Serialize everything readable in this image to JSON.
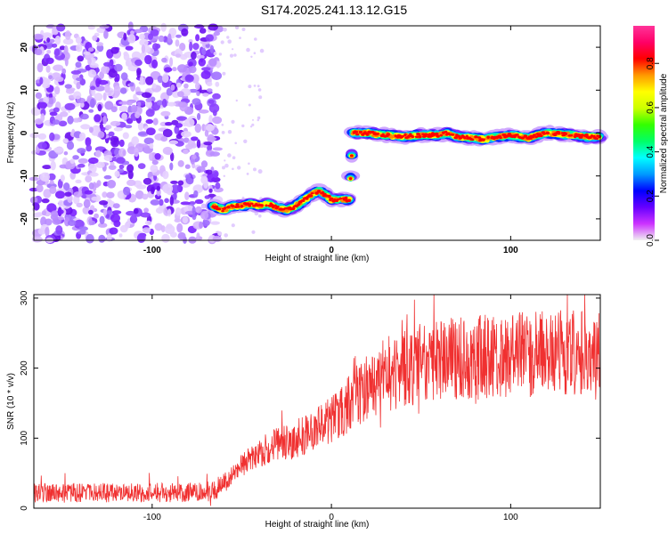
{
  "title": "S174.2025.241.13.12.G15",
  "chart_data": [
    {
      "type": "heatmap",
      "xlabel": "Height of straight line (km)",
      "ylabel": "Frequency (Hz)",
      "xlim": [
        -166,
        150
      ],
      "ylim": [
        -25,
        25
      ],
      "x_ticks": [
        -100,
        0,
        100
      ],
      "y_ticks": [
        -20,
        -10,
        0,
        10,
        20
      ],
      "colorbar": {
        "label": "Normalized spectral amplitude",
        "range": [
          0,
          0.97
        ],
        "ticks": [
          0.0,
          0.2,
          0.4,
          0.6,
          0.8
        ],
        "colors": [
          "#f0f0f0",
          "#cc33ff",
          "#6600ff",
          "#0000ff",
          "#0099ff",
          "#00ffff",
          "#00ff66",
          "#33ff00",
          "#ccff00",
          "#ffff00",
          "#ff9900",
          "#ff0000",
          "#ff0066",
          "#ff3399"
        ]
      },
      "noise_region": {
        "x": [
          -166,
          -63
        ],
        "y": [
          -25,
          25
        ]
      },
      "ridge": [
        {
          "x": -66,
          "y": -17
        },
        {
          "x": -60,
          "y": -18
        },
        {
          "x": -55,
          "y": -17
        },
        {
          "x": -50,
          "y": -17
        },
        {
          "x": -45,
          "y": -16.5
        },
        {
          "x": -40,
          "y": -17
        },
        {
          "x": -35,
          "y": -16.5
        },
        {
          "x": -30,
          "y": -17.5
        },
        {
          "x": -25,
          "y": -18
        },
        {
          "x": -20,
          "y": -17
        },
        {
          "x": -15,
          "y": -15.5
        },
        {
          "x": -10,
          "y": -14
        },
        {
          "x": -7,
          "y": -13.5
        },
        {
          "x": -3,
          "y": -14.5
        },
        {
          "x": 0,
          "y": -15.5
        },
        {
          "x": 5,
          "y": -15.5
        },
        {
          "x": 10,
          "y": -15.5
        },
        {
          "x": 12,
          "y": 0
        },
        {
          "x": 20,
          "y": 0
        },
        {
          "x": 30,
          "y": -0.5
        },
        {
          "x": 40,
          "y": -0.8
        },
        {
          "x": 50,
          "y": -0.5
        },
        {
          "x": 60,
          "y": -0.5
        },
        {
          "x": 65,
          "y": 0
        },
        {
          "x": 70,
          "y": -0.8
        },
        {
          "x": 75,
          "y": -1
        },
        {
          "x": 80,
          "y": -1.2
        },
        {
          "x": 85,
          "y": -1.5
        },
        {
          "x": 90,
          "y": -1
        },
        {
          "x": 95,
          "y": -0.8
        },
        {
          "x": 100,
          "y": -0.5
        },
        {
          "x": 110,
          "y": -1.2
        },
        {
          "x": 115,
          "y": -0.5
        },
        {
          "x": 120,
          "y": 0
        },
        {
          "x": 130,
          "y": -0.3
        },
        {
          "x": 140,
          "y": -0.8
        },
        {
          "x": 150,
          "y": -1
        }
      ]
    },
    {
      "type": "line",
      "xlabel": "Height of straight line (km)",
      "ylabel": "SNR (10 * v/v)",
      "xlim": [
        -166,
        150
      ],
      "ylim": [
        0,
        305
      ],
      "x_ticks": [
        -100,
        0,
        100
      ],
      "y_ticks": [
        0,
        100,
        200,
        300
      ],
      "color": "#f03030",
      "envelope": [
        {
          "x": -166,
          "y": 22
        },
        {
          "x": -130,
          "y": 22
        },
        {
          "x": -100,
          "y": 22
        },
        {
          "x": -80,
          "y": 23
        },
        {
          "x": -65,
          "y": 25
        },
        {
          "x": -58,
          "y": 40
        },
        {
          "x": -50,
          "y": 60
        },
        {
          "x": -40,
          "y": 80
        },
        {
          "x": -30,
          "y": 90
        },
        {
          "x": -20,
          "y": 100
        },
        {
          "x": -10,
          "y": 110
        },
        {
          "x": 0,
          "y": 125
        },
        {
          "x": 10,
          "y": 150
        },
        {
          "x": 20,
          "y": 175
        },
        {
          "x": 30,
          "y": 190
        },
        {
          "x": 40,
          "y": 200
        },
        {
          "x": 50,
          "y": 208
        },
        {
          "x": 60,
          "y": 212
        },
        {
          "x": 80,
          "y": 215
        },
        {
          "x": 100,
          "y": 218
        },
        {
          "x": 120,
          "y": 220
        },
        {
          "x": 140,
          "y": 222
        },
        {
          "x": 150,
          "y": 222
        }
      ]
    }
  ]
}
